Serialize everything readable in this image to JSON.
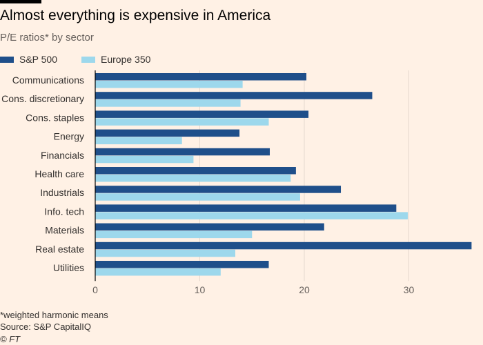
{
  "header": {
    "title": "Almost everything is expensive in America",
    "subtitle": "P/E ratios* by sector"
  },
  "footer": {
    "note": "*weighted harmonic means",
    "source": "Source: S&P CapitalIQ",
    "copyright": "© FT"
  },
  "colors": {
    "background": "#fff1e5",
    "sp500": "#1f4f8a",
    "europe350": "#9dd8ec",
    "grid": "#e6d9ce",
    "text": "#33302e"
  },
  "chart_data": {
    "type": "bar",
    "orientation": "horizontal",
    "title": "Almost everything is expensive in America",
    "subtitle": "P/E ratios* by sector",
    "categories": [
      "Communications",
      "Cons. discretionary",
      "Cons. staples",
      "Energy",
      "Financials",
      "Health care",
      "Industrials",
      "Info. tech",
      "Materials",
      "Real estate",
      "Utilities"
    ],
    "series": [
      {
        "name": "S&P 500",
        "color": "#1f4f8a",
        "values": [
          20.2,
          26.5,
          20.4,
          13.8,
          16.7,
          19.2,
          23.5,
          28.8,
          21.9,
          36.0,
          16.6
        ]
      },
      {
        "name": "Europe 350",
        "color": "#9dd8ec",
        "values": [
          14.1,
          13.9,
          16.6,
          8.3,
          9.4,
          18.7,
          19.6,
          29.9,
          15.0,
          13.4,
          12.0
        ]
      }
    ],
    "xlim": [
      0,
      36
    ],
    "xticks": [
      0,
      10,
      20,
      30
    ],
    "grid": true,
    "legend_position": "top-left"
  }
}
